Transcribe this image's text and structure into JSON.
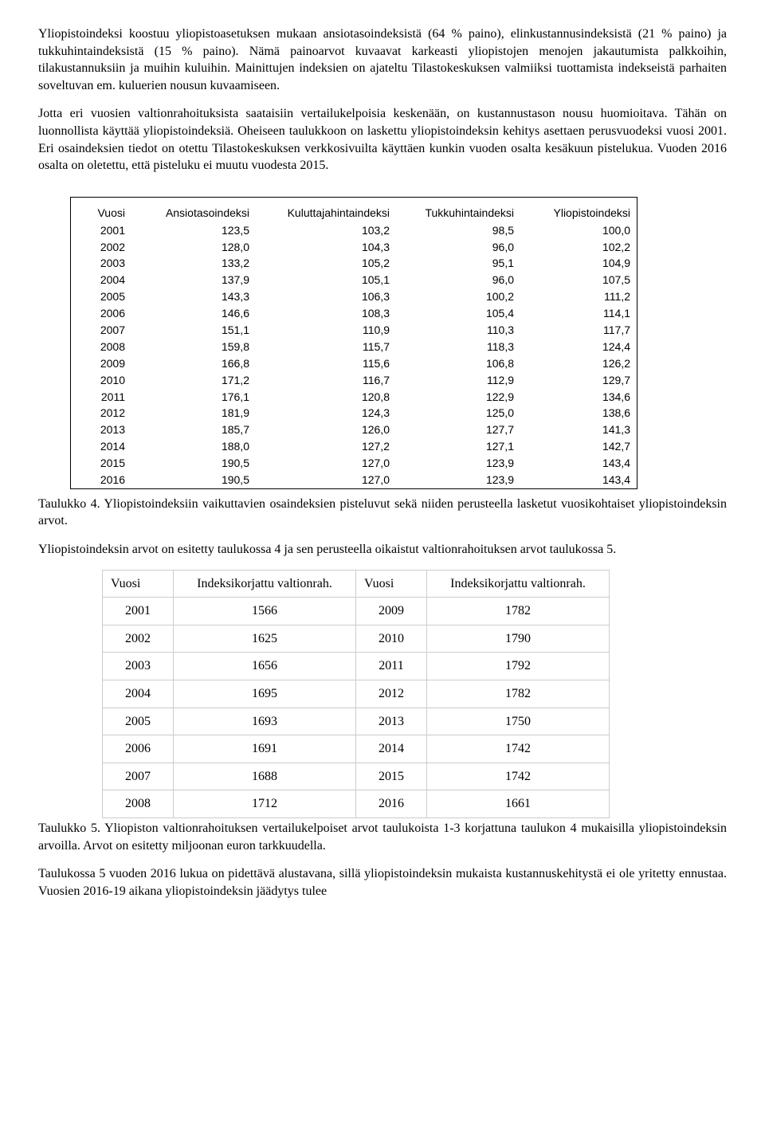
{
  "para1": "Yliopistoindeksi koostuu yliopistoasetuksen mukaan ansiotasoindeksistä (64 % paino), elinkustannusindeksistä (21 % paino) ja tukkuhintaindeksistä (15 % paino). Nämä painoarvot kuvaavat karkeasti yliopistojen menojen jakautumista palkkoihin, tilakustannuksiin ja muihin kuluihin. Mainittujen indeksien on ajateltu Tilastokeskuksen valmiiksi tuottamista indekseistä parhaiten soveltuvan em. kuluerien nousun kuvaamiseen.",
  "para2": "Jotta eri vuosien valtionrahoituksista saataisiin vertailukelpoisia keskenään, on kustannustason nousu huomioitava. Tähän on luonnollista käyttää yliopistoindeksiä. Oheiseen taulukkoon on laskettu yliopistoindeksin kehitys asettaen perusvuodeksi vuosi 2001. Eri osaindeksien tiedot on otettu Tilastokeskuksen verkkosivuilta käyttäen kunkin vuoden osalta kesäkuun pistelukua. Vuoden 2016 osalta on oletettu, että pisteluku ei muutu vuodesta 2015.",
  "table4": {
    "headers": [
      "Vuosi",
      "Ansiotasoindeksi",
      "Kuluttajahintaindeksi",
      "Tukkuhintaindeksi",
      "Yliopistoindeksi"
    ],
    "rows": [
      [
        "2001",
        "123,5",
        "103,2",
        "98,5",
        "100,0"
      ],
      [
        "2002",
        "128,0",
        "104,3",
        "96,0",
        "102,2"
      ],
      [
        "2003",
        "133,2",
        "105,2",
        "95,1",
        "104,9"
      ],
      [
        "2004",
        "137,9",
        "105,1",
        "96,0",
        "107,5"
      ],
      [
        "2005",
        "143,3",
        "106,3",
        "100,2",
        "111,2"
      ],
      [
        "2006",
        "146,6",
        "108,3",
        "105,4",
        "114,1"
      ],
      [
        "2007",
        "151,1",
        "110,9",
        "110,3",
        "117,7"
      ],
      [
        "2008",
        "159,8",
        "115,7",
        "118,3",
        "124,4"
      ],
      [
        "2009",
        "166,8",
        "115,6",
        "106,8",
        "126,2"
      ],
      [
        "2010",
        "171,2",
        "116,7",
        "112,9",
        "129,7"
      ],
      [
        "2011",
        "176,1",
        "120,8",
        "122,9",
        "134,6"
      ],
      [
        "2012",
        "181,9",
        "124,3",
        "125,0",
        "138,6"
      ],
      [
        "2013",
        "185,7",
        "126,0",
        "127,7",
        "141,3"
      ],
      [
        "2014",
        "188,0",
        "127,2",
        "127,1",
        "142,7"
      ],
      [
        "2015",
        "190,5",
        "127,0",
        "123,9",
        "143,4"
      ],
      [
        "2016",
        "190,5",
        "127,0",
        "123,9",
        "143,4"
      ]
    ]
  },
  "caption4": "Taulukko 4. Yliopistoindeksiin vaikuttavien osaindeksien pisteluvut sekä niiden perusteella lasketut vuosikohtaiset yliopistoindeksin arvot.",
  "para3": "Yliopistoindeksin arvot on esitetty taulukossa 4 ja sen perusteella oikaistut valtionrahoituksen arvot taulukossa 5.",
  "table5": {
    "headers": [
      "Vuosi",
      "Indeksikorjattu valtionrah.",
      "Vuosi",
      "Indeksikorjattu valtionrah."
    ],
    "rows": [
      [
        "2001",
        "1566",
        "2009",
        "1782"
      ],
      [
        "2002",
        "1625",
        "2010",
        "1790"
      ],
      [
        "2003",
        "1656",
        "2011",
        "1792"
      ],
      [
        "2004",
        "1695",
        "2012",
        "1782"
      ],
      [
        "2005",
        "1693",
        "2013",
        "1750"
      ],
      [
        "2006",
        "1691",
        "2014",
        "1742"
      ],
      [
        "2007",
        "1688",
        "2015",
        "1742"
      ],
      [
        "2008",
        "1712",
        "2016",
        "1661"
      ]
    ]
  },
  "caption5": "Taulukko 5. Yliopiston valtionrahoituksen vertailukelpoiset arvot taulukoista 1-3 korjattuna taulukon 4 mukaisilla yliopistoindeksin arvoilla. Arvot on esitetty miljoonan euron tarkkuudella.",
  "para4": "Taulukossa 5 vuoden 2016 lukua on pidettävä alustavana, sillä yliopistoindeksin mukaista kustannuskehitystä ei ole yritetty ennustaa. Vuosien 2016-19 aikana yliopistoindeksin jäädytys tulee",
  "styling": {
    "body_font": "Times New Roman",
    "body_fontsize_pt": 12,
    "table4_font": "Arial",
    "table4_fontsize_pt": 10.5,
    "table4_border_color": "#000000",
    "table5_border_color": "#cccccc",
    "background_color": "#ffffff",
    "text_color": "#000000"
  }
}
